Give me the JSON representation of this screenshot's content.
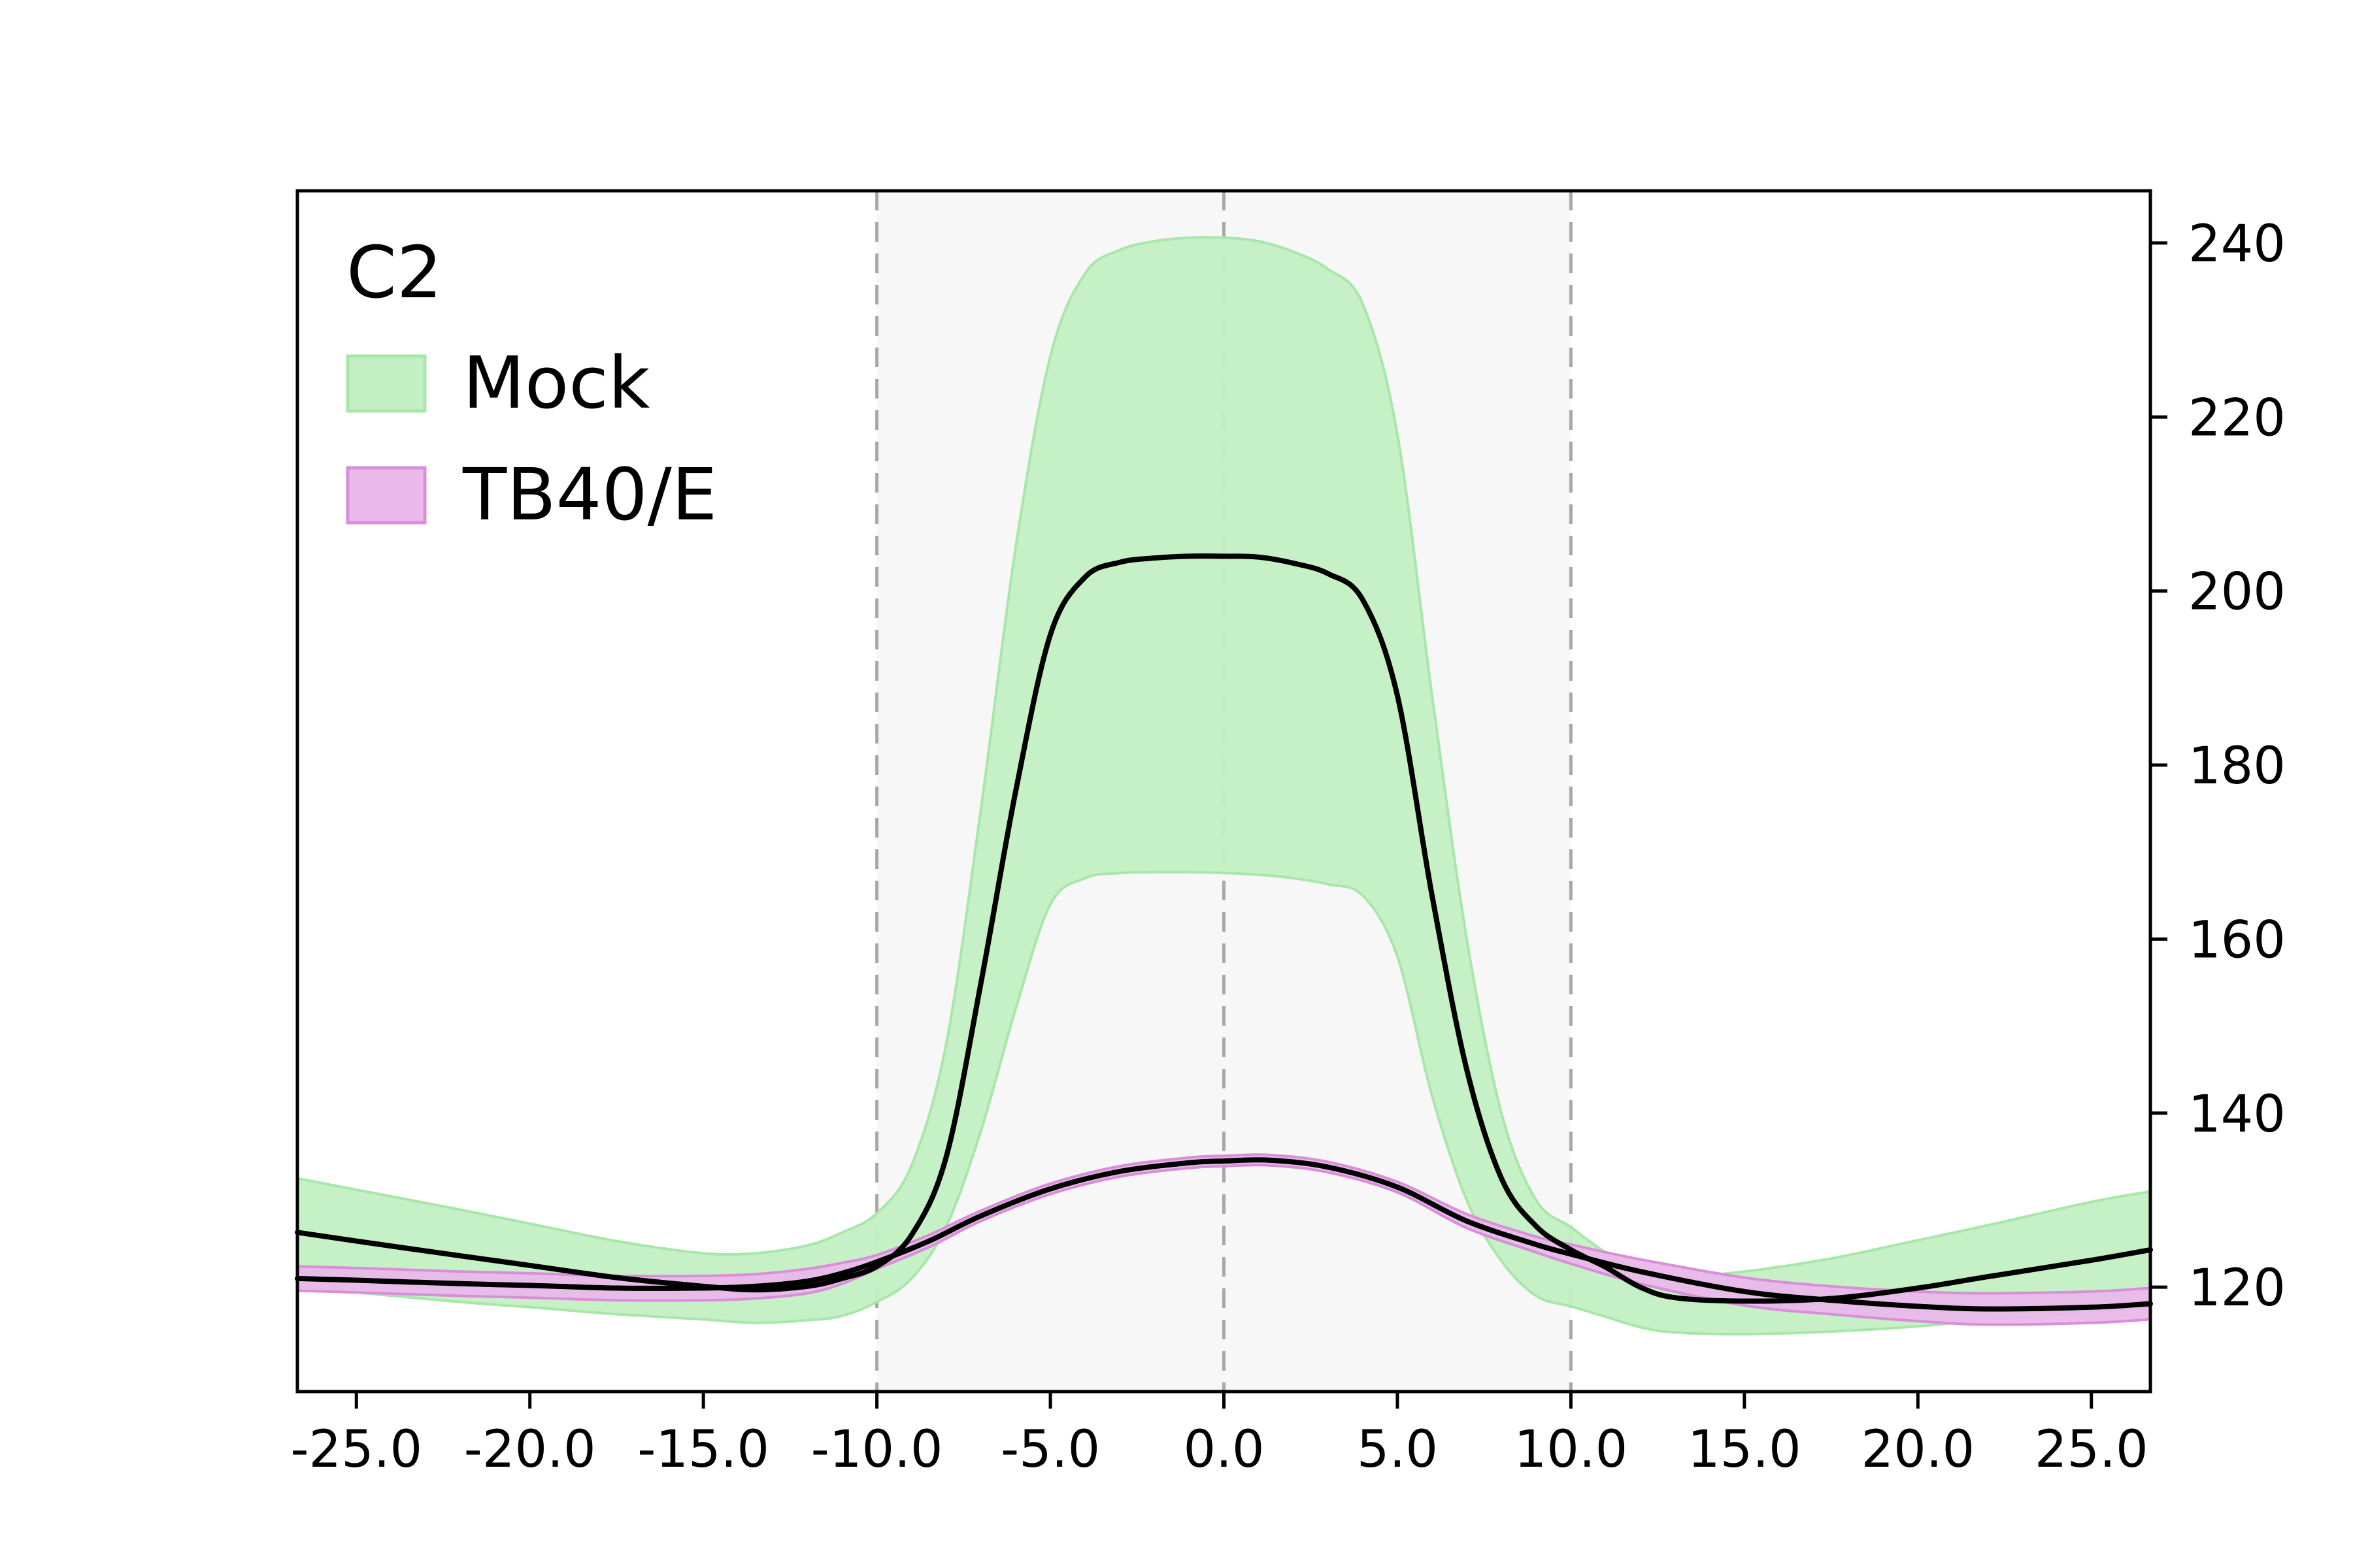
{
  "chart_data": {
    "type": "area",
    "title": "",
    "xlabel": "",
    "ylabel": "",
    "xlim": [
      -26.7,
      26.7
    ],
    "ylim": [
      108,
      246
    ],
    "y_axis_side": "right",
    "grid": false,
    "x_ticks": [
      -25.0,
      -20.0,
      -15.0,
      -10.0,
      -5.0,
      0.0,
      5.0,
      10.0,
      15.0,
      20.0,
      25.0
    ],
    "x_tick_labels": [
      "-25.0",
      "-20.0",
      "-15.0",
      "-10.0",
      "-5.0",
      "0.0",
      "5.0",
      "10.0",
      "15.0",
      "20.0",
      "25.0"
    ],
    "y_ticks": [
      120,
      140,
      160,
      180,
      200,
      220,
      240
    ],
    "y_tick_labels": [
      "120",
      "140",
      "160",
      "180",
      "200",
      "220",
      "240"
    ],
    "shaded_region": {
      "x": [
        -10,
        10
      ],
      "color": "#f7f7f7"
    },
    "vlines": [
      -10,
      0,
      10
    ],
    "legend": {
      "title": "C2",
      "position": "upper-left"
    },
    "series": [
      {
        "name": "Mock",
        "color": "#c3efc3",
        "edge_color": "#a9e6a9",
        "x": [
          -26.7,
          -25,
          -22,
          -20,
          -17.5,
          -15,
          -13.5,
          -12,
          -11,
          -10,
          -9,
          -8,
          -7,
          -6,
          -5,
          -4,
          -3,
          -2,
          -1,
          0,
          1,
          2,
          3,
          4,
          5,
          6,
          7,
          8,
          9,
          10,
          11,
          12,
          13,
          15,
          17.5,
          20,
          22,
          25,
          26.7
        ],
        "mean": [
          126.3,
          125.3,
          123.6,
          122.5,
          121.1,
          120.1,
          119.7,
          120.1,
          121.0,
          122.4,
          126.0,
          135.0,
          155.0,
          177.0,
          195.0,
          201.6,
          203.3,
          203.8,
          204.0,
          204.0,
          203.9,
          203.2,
          202.0,
          199.0,
          188.0,
          165.0,
          145.0,
          132.5,
          127.0,
          124.3,
          122.3,
          120.0,
          118.8,
          118.4,
          118.7,
          119.9,
          121.2,
          123.1,
          124.3
        ],
        "upper": [
          132.5,
          131.2,
          128.9,
          127.3,
          125.3,
          123.9,
          123.9,
          124.8,
          126.3,
          128.5,
          134.0,
          148.0,
          175.0,
          205.0,
          227.0,
          236.5,
          239.2,
          240.2,
          240.6,
          240.6,
          240.2,
          239.0,
          237.0,
          233.0,
          218.0,
          188.0,
          160.0,
          140.0,
          130.0,
          126.9,
          124.0,
          122.0,
          121.2,
          121.8,
          123.3,
          125.4,
          127.1,
          129.8,
          131.0
        ],
        "lower": [
          120.1,
          119.4,
          118.3,
          117.7,
          116.9,
          116.3,
          115.9,
          116.2,
          116.7,
          118.3,
          121.0,
          127.0,
          138.0,
          152.0,
          164.0,
          167.0,
          167.6,
          167.7,
          167.7,
          167.6,
          167.4,
          167.0,
          166.3,
          165.0,
          158.0,
          142.0,
          130.0,
          123.0,
          119.0,
          117.8,
          116.6,
          115.4,
          114.8,
          114.6,
          114.9,
          115.5,
          116.2,
          117.1,
          117.6
        ]
      },
      {
        "name": "TB40/E",
        "color": "#eab8ea",
        "edge_color": "#d98ed9",
        "x": [
          -26.7,
          -25,
          -22,
          -20,
          -17.5,
          -15,
          -13.5,
          -12,
          -11,
          -10,
          -8.5,
          -7,
          -5,
          -3,
          -1,
          0,
          1.3,
          3,
          5,
          7,
          9,
          10,
          12,
          15,
          17.5,
          20,
          22,
          25,
          26.7
        ],
        "mean": [
          121.0,
          120.8,
          120.4,
          120.2,
          119.9,
          119.9,
          120.1,
          120.7,
          121.6,
          122.9,
          125.3,
          128.2,
          131.3,
          133.3,
          134.3,
          134.5,
          134.6,
          133.8,
          131.5,
          127.6,
          124.9,
          123.8,
          121.8,
          119.5,
          118.5,
          117.8,
          117.5,
          117.7,
          118.1
        ],
        "upper": [
          122.4,
          122.2,
          121.8,
          121.6,
          121.3,
          121.3,
          121.5,
          122.1,
          122.8,
          123.7,
          126.0,
          128.8,
          131.9,
          133.9,
          134.9,
          135.1,
          135.2,
          134.4,
          132.1,
          128.4,
          125.8,
          124.9,
          123.2,
          121.1,
          120.1,
          119.5,
          119.3,
          119.5,
          119.9
        ],
        "lower": [
          119.6,
          119.4,
          119.0,
          118.8,
          118.5,
          118.5,
          118.7,
          119.3,
          120.4,
          122.1,
          124.6,
          127.6,
          130.7,
          132.7,
          133.7,
          133.9,
          134.0,
          133.2,
          130.9,
          126.8,
          124.0,
          122.7,
          120.4,
          117.9,
          116.9,
          116.1,
          115.7,
          115.9,
          116.3
        ]
      }
    ]
  }
}
